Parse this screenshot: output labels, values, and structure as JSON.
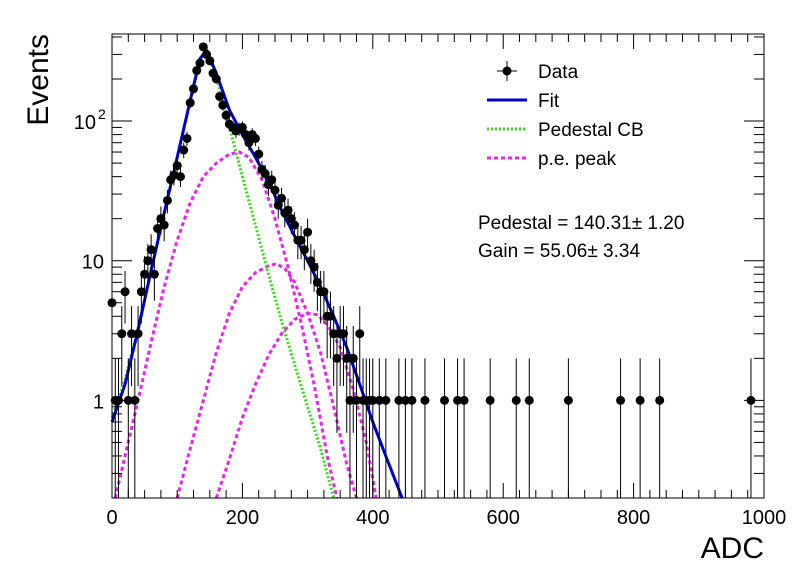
{
  "chart_data": {
    "type": "scatter",
    "xlabel": "ADC",
    "ylabel": "Events",
    "xlim": [
      0,
      1000
    ],
    "ylim": [
      0.2,
      420
    ],
    "yscale": "log",
    "grid": false,
    "legend_position": "top-right",
    "x_ticks": [
      0,
      200,
      400,
      600,
      800,
      1000
    ],
    "y_ticks": [
      {
        "value": 1,
        "label": "1"
      },
      {
        "value": 10,
        "label": "10"
      },
      {
        "value": 100,
        "label": "10",
        "sup": "2"
      }
    ],
    "legend": [
      {
        "label": "Data",
        "marker": "point",
        "color": "#000000"
      },
      {
        "label": "Fit",
        "marker": "solid",
        "color": "#0000cc"
      },
      {
        "label": "Pedestal CB",
        "marker": "dotted",
        "color": "#33dd11"
      },
      {
        "label": "p.e. peak",
        "marker": "dashed",
        "color": "#ee22ee"
      }
    ],
    "annotations": [
      "Pedestal = 140.31± 1.20",
      "Gain = 55.06± 3.34"
    ],
    "colors": {
      "data": "#000000",
      "fit": "#0000cc",
      "pedestal": "#33dd11",
      "pe_peak": "#ee22ee"
    },
    "data_points": [
      [
        0,
        5
      ],
      [
        5,
        1
      ],
      [
        10,
        1
      ],
      [
        15,
        3
      ],
      [
        20,
        6
      ],
      [
        25,
        1
      ],
      [
        30,
        3
      ],
      [
        35,
        1
      ],
      [
        40,
        3
      ],
      [
        45,
        6
      ],
      [
        50,
        8
      ],
      [
        55,
        10
      ],
      [
        60,
        12
      ],
      [
        65,
        8
      ],
      [
        70,
        17
      ],
      [
        75,
        20
      ],
      [
        80,
        18
      ],
      [
        85,
        27
      ],
      [
        90,
        38
      ],
      [
        95,
        41
      ],
      [
        100,
        48
      ],
      [
        105,
        40
      ],
      [
        110,
        62
      ],
      [
        115,
        75
      ],
      [
        120,
        135
      ],
      [
        125,
        170
      ],
      [
        130,
        230
      ],
      [
        135,
        260
      ],
      [
        140,
        340
      ],
      [
        145,
        300
      ],
      [
        150,
        270
      ],
      [
        155,
        220
      ],
      [
        160,
        200
      ],
      [
        165,
        150
      ],
      [
        170,
        130
      ],
      [
        175,
        110
      ],
      [
        180,
        95
      ],
      [
        185,
        90
      ],
      [
        190,
        85
      ],
      [
        195,
        88
      ],
      [
        200,
        90
      ],
      [
        205,
        80
      ],
      [
        210,
        70
      ],
      [
        215,
        80
      ],
      [
        220,
        75
      ],
      [
        225,
        58
      ],
      [
        230,
        45
      ],
      [
        235,
        42
      ],
      [
        240,
        35
      ],
      [
        245,
        38
      ],
      [
        250,
        32
      ],
      [
        255,
        25
      ],
      [
        260,
        28
      ],
      [
        265,
        22
      ],
      [
        270,
        23
      ],
      [
        275,
        20
      ],
      [
        280,
        18
      ],
      [
        285,
        14
      ],
      [
        290,
        14
      ],
      [
        295,
        12
      ],
      [
        300,
        16
      ],
      [
        305,
        10
      ],
      [
        310,
        9
      ],
      [
        315,
        7
      ],
      [
        320,
        6
      ],
      [
        325,
        6
      ],
      [
        330,
        4
      ],
      [
        335,
        4
      ],
      [
        340,
        3
      ],
      [
        345,
        2
      ],
      [
        350,
        3
      ],
      [
        355,
        3
      ],
      [
        360,
        2
      ],
      [
        365,
        1
      ],
      [
        370,
        2
      ],
      [
        375,
        1
      ],
      [
        380,
        3
      ],
      [
        385,
        1
      ],
      [
        390,
        1
      ],
      [
        395,
        1
      ],
      [
        400,
        1
      ],
      [
        410,
        1
      ],
      [
        420,
        1
      ],
      [
        440,
        1
      ],
      [
        450,
        1
      ],
      [
        460,
        1
      ],
      [
        480,
        1
      ],
      [
        510,
        1
      ],
      [
        530,
        1
      ],
      [
        540,
        1
      ],
      [
        580,
        1
      ],
      [
        620,
        1
      ],
      [
        640,
        1
      ],
      [
        700,
        1
      ],
      [
        780,
        1
      ],
      [
        810,
        1
      ],
      [
        840,
        1
      ],
      [
        980,
        1
      ]
    ],
    "fit_curve": [
      [
        0,
        0.7
      ],
      [
        20,
        1.3
      ],
      [
        40,
        3.2
      ],
      [
        60,
        8.5
      ],
      [
        80,
        22
      ],
      [
        100,
        55
      ],
      [
        120,
        140
      ],
      [
        135,
        280
      ],
      [
        145,
        320
      ],
      [
        160,
        220
      ],
      [
        180,
        120
      ],
      [
        200,
        80
      ],
      [
        220,
        55
      ],
      [
        240,
        37
      ],
      [
        260,
        23
      ],
      [
        280,
        15
      ],
      [
        300,
        10
      ],
      [
        320,
        6.5
      ],
      [
        340,
        4
      ],
      [
        360,
        2.4
      ],
      [
        380,
        1.3
      ],
      [
        400,
        0.7
      ],
      [
        420,
        0.4
      ],
      [
        445,
        0.2
      ]
    ],
    "pedestal_curve": [
      [
        0,
        0.75
      ],
      [
        20,
        1.4
      ],
      [
        40,
        3.3
      ],
      [
        60,
        8.5
      ],
      [
        80,
        22
      ],
      [
        100,
        55
      ],
      [
        120,
        140
      ],
      [
        135,
        280
      ],
      [
        145,
        310
      ],
      [
        160,
        210
      ],
      [
        180,
        90
      ],
      [
        200,
        40
      ],
      [
        220,
        18
      ],
      [
        240,
        8
      ],
      [
        260,
        3.7
      ],
      [
        280,
        1.8
      ],
      [
        300,
        0.9
      ],
      [
        320,
        0.45
      ],
      [
        340,
        0.2
      ]
    ],
    "pe_peak_curves": [
      [
        [
          5,
          0.2
        ],
        [
          20,
          0.4
        ],
        [
          40,
          1.0
        ],
        [
          60,
          2.6
        ],
        [
          80,
          6.5
        ],
        [
          100,
          14
        ],
        [
          120,
          26
        ],
        [
          140,
          40
        ],
        [
          160,
          50
        ],
        [
          180,
          58
        ],
        [
          195,
          60
        ],
        [
          210,
          55
        ],
        [
          230,
          38
        ],
        [
          250,
          20
        ],
        [
          270,
          9
        ],
        [
          290,
          3.6
        ],
        [
          310,
          1.3
        ],
        [
          330,
          0.4
        ],
        [
          345,
          0.2
        ]
      ],
      [
        [
          100,
          0.2
        ],
        [
          120,
          0.45
        ],
        [
          140,
          1.0
        ],
        [
          160,
          2.2
        ],
        [
          180,
          4.2
        ],
        [
          200,
          6.5
        ],
        [
          220,
          8.2
        ],
        [
          240,
          9.2
        ],
        [
          252,
          9.5
        ],
        [
          265,
          8.8
        ],
        [
          280,
          7.0
        ],
        [
          300,
          4.2
        ],
        [
          320,
          2.2
        ],
        [
          340,
          0.9
        ],
        [
          360,
          0.35
        ],
        [
          375,
          0.2
        ]
      ],
      [
        [
          160,
          0.2
        ],
        [
          180,
          0.38
        ],
        [
          200,
          0.75
        ],
        [
          220,
          1.3
        ],
        [
          240,
          2.1
        ],
        [
          260,
          3.0
        ],
        [
          280,
          3.8
        ],
        [
          300,
          4.2
        ],
        [
          315,
          4.1
        ],
        [
          330,
          3.5
        ],
        [
          350,
          2.4
        ],
        [
          370,
          1.2
        ],
        [
          390,
          0.5
        ],
        [
          405,
          0.2
        ]
      ]
    ]
  }
}
